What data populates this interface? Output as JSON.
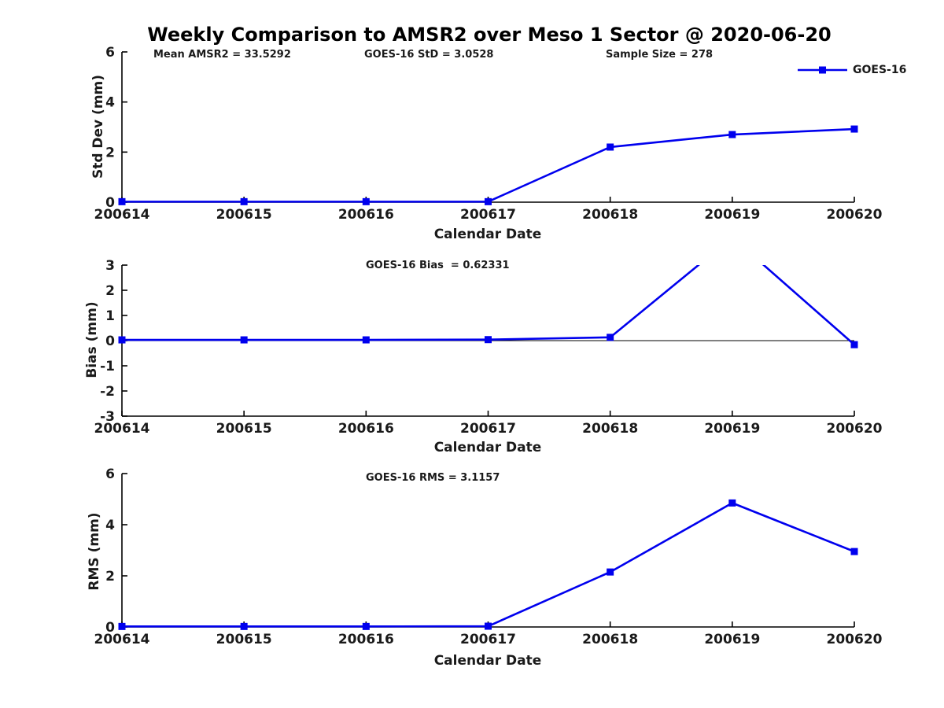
{
  "title": "Weekly Comparison to AMSR2 over Meso 1 Sector @ 2020-06-20",
  "legend": {
    "label": "GOES-16",
    "position": "upper-right-outside"
  },
  "colors": {
    "series": "#0000EE",
    "axis": "#000000",
    "tick_text": "#1a1a1a"
  },
  "chart_data": [
    {
      "type": "line",
      "panel": "std-dev",
      "annotations": [
        "Mean AMSR2 = 33.5292",
        "GOES-16 StD = 3.0528",
        "Sample Size = 278"
      ],
      "xlabel": "Calendar Date",
      "ylabel": "Std Dev (mm)",
      "x": [
        "200614",
        "200615",
        "200616",
        "200617",
        "200618",
        "200619",
        "200620"
      ],
      "series": [
        {
          "name": "GOES-16",
          "values": [
            0.02,
            0.02,
            0.02,
            0.02,
            2.2,
            2.7,
            2.92
          ]
        }
      ],
      "ylim": [
        0,
        6
      ],
      "yticks": [
        0,
        2,
        4,
        6
      ],
      "grid": false,
      "zero_line": false
    },
    {
      "type": "line",
      "panel": "bias",
      "annotations": [
        "GOES-16 Bias  = 0.62331"
      ],
      "xlabel": "Calendar Date",
      "ylabel": "Bias (mm)",
      "x": [
        "200614",
        "200615",
        "200616",
        "200617",
        "200618",
        "200619",
        "200620"
      ],
      "series": [
        {
          "name": "GOES-16",
          "values": [
            0.03,
            0.03,
            0.03,
            0.04,
            0.13,
            4.1,
            -0.16
          ]
        }
      ],
      "ylim": [
        -3,
        3
      ],
      "yticks": [
        -3,
        -2,
        -1,
        0,
        1,
        2,
        3
      ],
      "grid": false,
      "zero_line": true
    },
    {
      "type": "line",
      "panel": "rms",
      "annotations": [
        "GOES-16 RMS = 3.1157"
      ],
      "xlabel": "Calendar Date",
      "ylabel": "RMS (mm)",
      "x": [
        "200614",
        "200615",
        "200616",
        "200617",
        "200618",
        "200619",
        "200620"
      ],
      "series": [
        {
          "name": "GOES-16",
          "values": [
            0.02,
            0.02,
            0.02,
            0.03,
            2.15,
            4.85,
            2.95
          ]
        }
      ],
      "ylim": [
        0,
        6
      ],
      "yticks": [
        0,
        2,
        4,
        6
      ],
      "grid": false,
      "zero_line": false
    }
  ]
}
